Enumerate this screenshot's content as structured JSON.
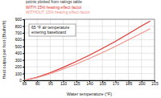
{
  "chart_data": {
    "type": "line",
    "title": "points plotted from ratings table",
    "annotation": [
      "65 °F air temperature",
      "entering baseboard"
    ],
    "x_label": "Water temperature (°F)",
    "y_label": "Heat output per foot (Btu/hr/ft)",
    "x": [
      65,
      80,
      95,
      110,
      125,
      140,
      155,
      170,
      185,
      200,
      210
    ],
    "series": [
      {
        "name": "WITH 15% heating effect factor",
        "color": "#e0302a",
        "line_style": "solid",
        "values": [
          0,
          46,
          113,
          191,
          277,
          370,
          470,
          575,
          688,
          802,
          874
        ]
      },
      {
        "name": "WITHOUT 15% heating effect factor",
        "color": "#f0908a",
        "line_style": "solid",
        "values": [
          0,
          40,
          98,
          166,
          241,
          322,
          409,
          500,
          598,
          697,
          760
        ]
      }
    ],
    "xlim": [
      65,
      215
    ],
    "xticks": [
      65,
      80,
      95,
      110,
      125,
      140,
      155,
      170,
      185,
      200,
      215
    ],
    "ylim": [
      0,
      900
    ],
    "yticks": [
      0,
      100,
      200,
      300,
      400,
      500,
      600,
      700,
      800,
      900
    ],
    "grid": true,
    "legend": "upper left"
  }
}
